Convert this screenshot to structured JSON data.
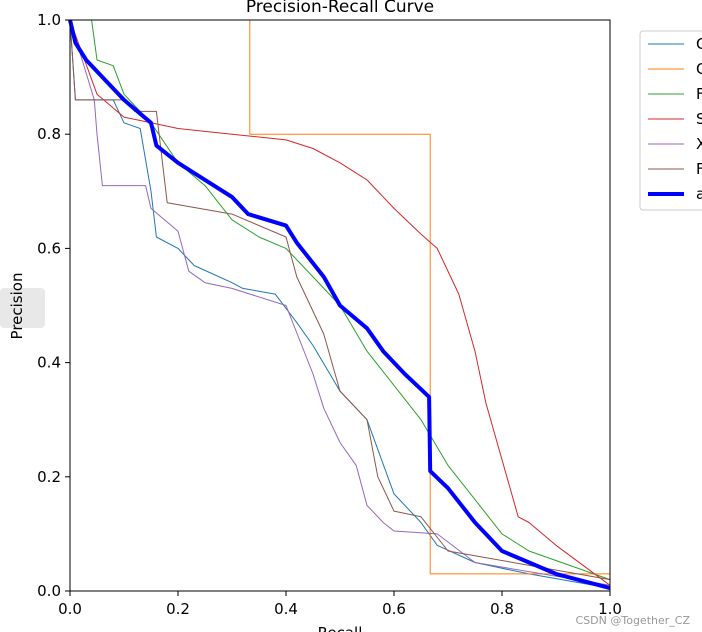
{
  "chart_data": {
    "type": "line",
    "title": "Precision-Recall Curve",
    "xlabel": "Recall",
    "ylabel": "Precision",
    "xlim": [
      0,
      1
    ],
    "ylim": [
      0,
      1
    ],
    "xticks": [
      {
        "value": 0,
        "label": "0.0"
      },
      0.2,
      0.4,
      0.6,
      0.8,
      {
        "value": 1,
        "label": "1.0"
      }
    ],
    "yticks": [
      {
        "value": 0,
        "label": "0.0"
      },
      0.2,
      0.4,
      0.6,
      0.8,
      {
        "value": 1,
        "label": "1.0"
      }
    ],
    "legend": "upper right",
    "watermark": "CSDN @Together_CZ",
    "series": [
      {
        "name": "C",
        "color": "#1f77b4",
        "linewidth": 1,
        "x": [
          0,
          0.01,
          0.08,
          0.1,
          0.13,
          0.15,
          0.16,
          0.2,
          0.23,
          0.3,
          0.32,
          0.38,
          0.42,
          0.45,
          0.5,
          0.55,
          0.6,
          0.65,
          0.68,
          0.75,
          0.85,
          1
        ],
        "values": [
          1,
          0.86,
          0.86,
          0.82,
          0.81,
          0.7,
          0.62,
          0.6,
          0.57,
          0.54,
          0.53,
          0.52,
          0.47,
          0.43,
          0.35,
          0.3,
          0.17,
          0.12,
          0.08,
          0.05,
          0.03,
          0.005
        ]
      },
      {
        "name": "C",
        "color": "#ff7f0e",
        "linewidth": 1,
        "x": [
          0,
          0.333,
          0.333,
          0.667,
          0.667,
          1,
          1
        ],
        "values": [
          1,
          1,
          0.8,
          0.8,
          0.03,
          0.03,
          0.02
        ]
      },
      {
        "name": "F",
        "color": "#2ca02c",
        "linewidth": 1,
        "x": [
          0,
          0.04,
          0.05,
          0.08,
          0.1,
          0.15,
          0.2,
          0.25,
          0.3,
          0.35,
          0.4,
          0.45,
          0.5,
          0.55,
          0.6,
          0.65,
          0.7,
          0.75,
          0.8,
          0.85,
          1
        ],
        "values": [
          1,
          1,
          0.93,
          0.92,
          0.87,
          0.82,
          0.75,
          0.71,
          0.65,
          0.62,
          0.6,
          0.55,
          0.5,
          0.42,
          0.36,
          0.3,
          0.22,
          0.16,
          0.1,
          0.07,
          0.02
        ]
      },
      {
        "name": "S",
        "color": "#d62728",
        "linewidth": 1,
        "x": [
          0,
          0.05,
          0.1,
          0.15,
          0.2,
          0.3,
          0.4,
          0.45,
          0.5,
          0.55,
          0.6,
          0.65,
          0.68,
          0.72,
          0.75,
          0.77,
          0.8,
          0.83,
          0.85,
          0.9,
          1
        ],
        "values": [
          1,
          0.87,
          0.83,
          0.82,
          0.81,
          0.8,
          0.79,
          0.775,
          0.75,
          0.72,
          0.67,
          0.625,
          0.6,
          0.52,
          0.42,
          0.33,
          0.23,
          0.13,
          0.12,
          0.08,
          0.01
        ]
      },
      {
        "name": "X",
        "color": "#9467bd",
        "linewidth": 1,
        "x": [
          0,
          0.045,
          0.05,
          0.06,
          0.14,
          0.15,
          0.2,
          0.22,
          0.25,
          0.3,
          0.4,
          0.45,
          0.47,
          0.5,
          0.53,
          0.55,
          0.58,
          0.6,
          0.68,
          0.75,
          1
        ],
        "values": [
          1,
          0.86,
          0.8,
          0.71,
          0.71,
          0.67,
          0.63,
          0.56,
          0.54,
          0.53,
          0.5,
          0.38,
          0.32,
          0.26,
          0.22,
          0.15,
          0.12,
          0.105,
          0.1,
          0.05,
          0.01
        ]
      },
      {
        "name": "F",
        "color": "#8c564b",
        "linewidth": 1,
        "x": [
          0,
          0.01,
          0.1,
          0.12,
          0.16,
          0.18,
          0.3,
          0.4,
          0.42,
          0.47,
          0.5,
          0.55,
          0.57,
          0.6,
          0.65,
          0.7,
          1
        ],
        "values": [
          1,
          0.86,
          0.86,
          0.84,
          0.84,
          0.68,
          0.66,
          0.62,
          0.55,
          0.45,
          0.35,
          0.3,
          0.2,
          0.14,
          0.13,
          0.07,
          0.02
        ]
      },
      {
        "name": "a",
        "color": "#0000ff",
        "linewidth": 4,
        "x": [
          0,
          0.01,
          0.03,
          0.06,
          0.1,
          0.15,
          0.16,
          0.2,
          0.25,
          0.3,
          0.33,
          0.4,
          0.42,
          0.47,
          0.5,
          0.55,
          0.58,
          0.62,
          0.665,
          0.667,
          0.7,
          0.75,
          0.8,
          0.9,
          1
        ],
        "values": [
          1,
          0.96,
          0.93,
          0.9,
          0.86,
          0.82,
          0.78,
          0.75,
          0.72,
          0.69,
          0.66,
          0.64,
          0.61,
          0.55,
          0.5,
          0.46,
          0.42,
          0.38,
          0.34,
          0.21,
          0.18,
          0.12,
          0.07,
          0.03,
          0.005
        ]
      }
    ]
  }
}
